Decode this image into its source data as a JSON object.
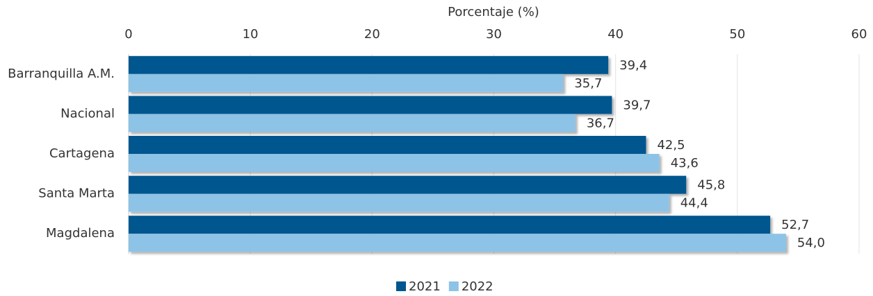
{
  "chart_data": {
    "type": "hbar",
    "xlabel": "Porcentaje (%)",
    "categories": [
      "Barranquilla A.M.",
      "Nacional",
      "Cartagena",
      "Santa Marta",
      "Magdalena"
    ],
    "series": [
      {
        "name": "2021",
        "color": "#00568f",
        "values": [
          39.4,
          39.7,
          42.5,
          45.8,
          52.7
        ],
        "value_labels": [
          "39,4",
          "39,7",
          "42,5",
          "45,8",
          "52,7"
        ]
      },
      {
        "name": "2022",
        "color": "#8dc3e6",
        "values": [
          35.7,
          36.7,
          43.6,
          44.4,
          54.0
        ],
        "value_labels": [
          "35,7",
          "36,7",
          "43,6",
          "44,4",
          "54,0"
        ]
      }
    ],
    "xlim": [
      0,
      60
    ],
    "xticks": [
      0,
      10,
      20,
      30,
      40,
      50,
      60
    ],
    "grid": true,
    "legend": "bottom"
  }
}
